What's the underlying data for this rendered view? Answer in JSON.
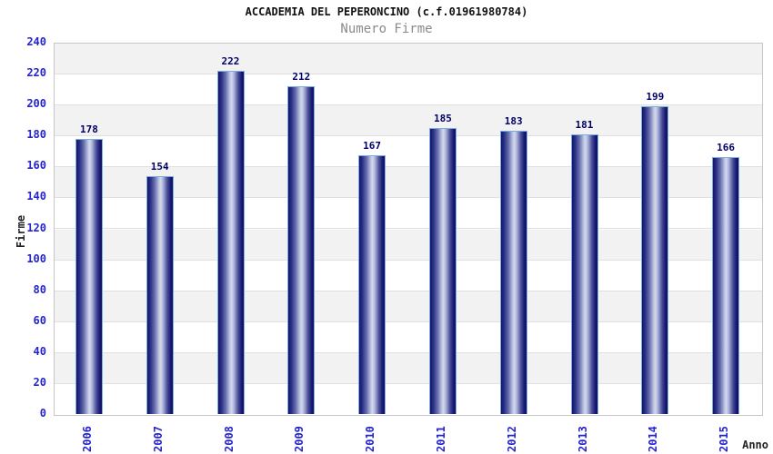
{
  "chart_data": {
    "type": "bar",
    "title": "ACCADEMIA DEL PEPERONCINO (c.f.01961980784)",
    "subtitle": "Numero Firme",
    "xlabel": "Anno",
    "ylabel": "Firme",
    "categories": [
      "2006",
      "2007",
      "2008",
      "2009",
      "2010",
      "2011",
      "2012",
      "2013",
      "2014",
      "2015"
    ],
    "values": [
      178,
      154,
      222,
      212,
      167,
      185,
      183,
      181,
      199,
      166
    ],
    "ylim": [
      0,
      240
    ],
    "ytick_step": 20,
    "grid": "horizontal-bands-alternating",
    "legend": "none",
    "colors": {
      "tick_label": "#2424cc",
      "value_label": "#000066",
      "title": "#111111",
      "subtitle": "#8a8a8a",
      "bar_dark": "#14146a",
      "bar_highlight": "#d4daee",
      "bar_border": "#79aede",
      "band_gray": "#f2f2f2",
      "band_white": "#ffffff",
      "grid_line": "#e0e0e0",
      "plot_border": "#c6c6c6",
      "background": "#ffffff"
    }
  }
}
